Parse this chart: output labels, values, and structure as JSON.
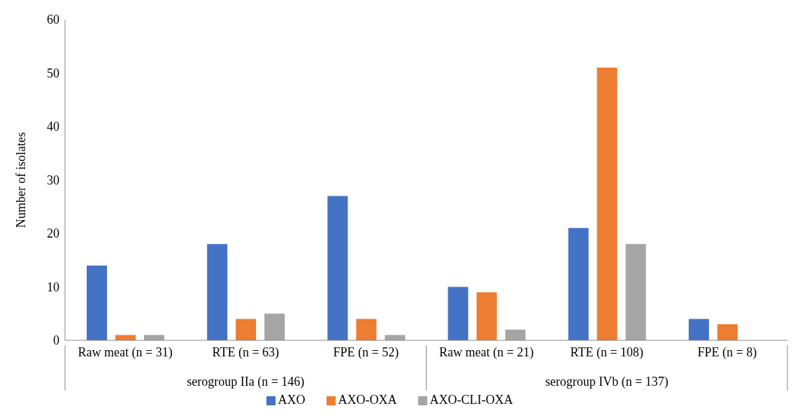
{
  "chart_data": {
    "type": "bar",
    "ylabel": "Number of isolates",
    "categories": [
      "Raw meat (n = 31)",
      "RTE (n = 63)",
      "FPE (n = 52)",
      "Raw meat (n = 21)",
      "RTE (n = 108)",
      "FPE (n = 8)"
    ],
    "series": [
      {
        "name": "AXO",
        "color": "#4472c4",
        "values": [
          14,
          18,
          27,
          10,
          21,
          4
        ]
      },
      {
        "name": "AXO-OXA",
        "color": "#ed7d31",
        "values": [
          1,
          4,
          4,
          9,
          51,
          3
        ]
      },
      {
        "name": "AXO-CLI-OXA",
        "color": "#a5a5a5",
        "values": [
          1,
          5,
          1,
          2,
          18,
          0
        ]
      }
    ],
    "annotations": [
      "serogroup IIa (n = 146)",
      "serogroup IVb (n = 137)"
    ],
    "ylim": [
      0,
      60
    ],
    "yticks": [
      0,
      10,
      20,
      30,
      40,
      50,
      60
    ],
    "grid": false,
    "legend": "bottom"
  }
}
